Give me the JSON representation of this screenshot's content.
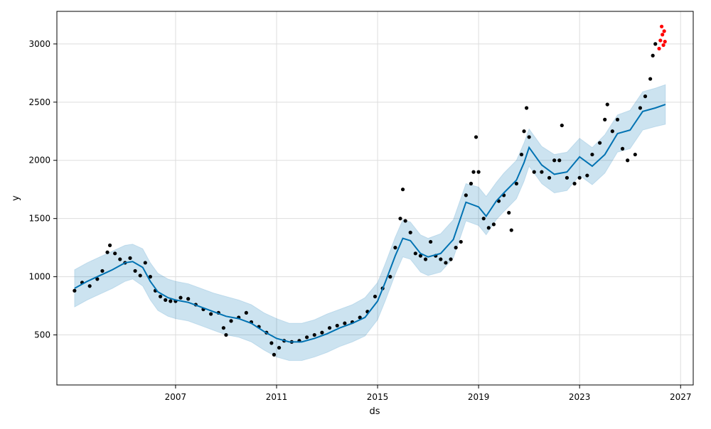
{
  "chart_data": {
    "type": "line",
    "title": "",
    "xlabel": "ds",
    "ylabel": "y",
    "grid": true,
    "xlim": [
      2002.3,
      2027.5
    ],
    "ylim": [
      70,
      3280
    ],
    "x_ticks": [
      2007,
      2011,
      2015,
      2019,
      2023,
      2027
    ],
    "x_tick_labels": [
      "2007",
      "2011",
      "2015",
      "2019",
      "2023",
      "2027"
    ],
    "y_ticks": [
      500,
      1000,
      1500,
      2000,
      2500,
      3000
    ],
    "y_tick_labels": [
      "500",
      "1000",
      "1500",
      "2000",
      "2500",
      "3000"
    ],
    "colors": {
      "forecast_line": "#0072B2",
      "uncertainty_band": "#0072B2",
      "observed_points": "#000000",
      "recent_points": "#ff0000",
      "grid": "#dddddd"
    },
    "series": [
      {
        "role": "forecast",
        "x": [
          2003.0,
          2003.5,
          2004.0,
          2004.5,
          2005.0,
          2005.3,
          2005.7,
          2006.0,
          2006.3,
          2006.7,
          2007.0,
          2007.5,
          2008.0,
          2008.5,
          2009.0,
          2009.5,
          2010.0,
          2010.5,
          2011.0,
          2011.5,
          2012.0,
          2012.5,
          2013.0,
          2013.5,
          2014.0,
          2014.5,
          2015.0,
          2015.3,
          2015.7,
          2016.0,
          2016.3,
          2016.7,
          2017.0,
          2017.5,
          2018.0,
          2018.5,
          2019.0,
          2019.3,
          2019.7,
          2020.0,
          2020.5,
          2020.8,
          2021.0,
          2021.5,
          2022.0,
          2022.5,
          2023.0,
          2023.5,
          2024.0,
          2024.5,
          2025.0,
          2025.5,
          2026.0,
          2026.4
        ],
        "y": [
          900,
          960,
          1010,
          1060,
          1120,
          1130,
          1080,
          960,
          870,
          820,
          800,
          780,
          740,
          700,
          660,
          640,
          600,
          530,
          470,
          440,
          440,
          470,
          510,
          560,
          600,
          650,
          790,
          950,
          1180,
          1330,
          1310,
          1200,
          1170,
          1200,
          1320,
          1640,
          1600,
          1520,
          1650,
          1720,
          1830,
          1980,
          2110,
          1960,
          1880,
          1900,
          2030,
          1950,
          2050,
          2230,
          2260,
          2420,
          2450,
          2480
        ],
        "band_upper": [
          1060,
          1120,
          1170,
          1220,
          1270,
          1280,
          1240,
          1120,
          1030,
          980,
          960,
          940,
          900,
          860,
          830,
          800,
          760,
          690,
          640,
          600,
          600,
          630,
          680,
          720,
          760,
          820,
          950,
          1110,
          1340,
          1490,
          1470,
          1360,
          1330,
          1370,
          1490,
          1800,
          1770,
          1690,
          1810,
          1890,
          2000,
          2150,
          2270,
          2120,
          2050,
          2070,
          2190,
          2110,
          2220,
          2390,
          2430,
          2590,
          2620,
          2650
        ],
        "band_lower": [
          740,
          800,
          850,
          900,
          960,
          980,
          920,
          800,
          710,
          660,
          640,
          620,
          580,
          540,
          500,
          480,
          440,
          370,
          310,
          280,
          280,
          310,
          350,
          400,
          440,
          490,
          630,
          790,
          1020,
          1170,
          1150,
          1040,
          1010,
          1040,
          1160,
          1480,
          1440,
          1360,
          1490,
          1560,
          1670,
          1820,
          1950,
          1800,
          1720,
          1740,
          1870,
          1790,
          1890,
          2070,
          2100,
          2260,
          2290,
          2310
        ]
      },
      {
        "role": "observed",
        "points": [
          [
            2003.0,
            880
          ],
          [
            2003.3,
            950
          ],
          [
            2003.6,
            920
          ],
          [
            2003.9,
            980
          ],
          [
            2004.1,
            1050
          ],
          [
            2004.3,
            1210
          ],
          [
            2004.4,
            1270
          ],
          [
            2004.6,
            1200
          ],
          [
            2004.8,
            1150
          ],
          [
            2005.0,
            1120
          ],
          [
            2005.2,
            1160
          ],
          [
            2005.4,
            1050
          ],
          [
            2005.6,
            1010
          ],
          [
            2005.8,
            1120
          ],
          [
            2006.0,
            1000
          ],
          [
            2006.2,
            880
          ],
          [
            2006.4,
            830
          ],
          [
            2006.6,
            800
          ],
          [
            2006.8,
            790
          ],
          [
            2007.0,
            790
          ],
          [
            2007.2,
            820
          ],
          [
            2007.5,
            810
          ],
          [
            2007.8,
            760
          ],
          [
            2008.1,
            720
          ],
          [
            2008.4,
            680
          ],
          [
            2008.7,
            690
          ],
          [
            2008.9,
            560
          ],
          [
            2009.0,
            500
          ],
          [
            2009.2,
            620
          ],
          [
            2009.5,
            650
          ],
          [
            2009.8,
            690
          ],
          [
            2010.0,
            610
          ],
          [
            2010.3,
            570
          ],
          [
            2010.6,
            520
          ],
          [
            2010.8,
            430
          ],
          [
            2010.9,
            330
          ],
          [
            2011.1,
            390
          ],
          [
            2011.3,
            450
          ],
          [
            2011.6,
            440
          ],
          [
            2011.9,
            450
          ],
          [
            2012.2,
            480
          ],
          [
            2012.5,
            500
          ],
          [
            2012.8,
            520
          ],
          [
            2013.1,
            560
          ],
          [
            2013.4,
            580
          ],
          [
            2013.7,
            600
          ],
          [
            2014.0,
            610
          ],
          [
            2014.3,
            650
          ],
          [
            2014.6,
            700
          ],
          [
            2014.9,
            830
          ],
          [
            2015.2,
            900
          ],
          [
            2015.5,
            1000
          ],
          [
            2015.7,
            1250
          ],
          [
            2015.9,
            1500
          ],
          [
            2016.0,
            1750
          ],
          [
            2016.1,
            1480
          ],
          [
            2016.3,
            1380
          ],
          [
            2016.5,
            1200
          ],
          [
            2016.7,
            1180
          ],
          [
            2016.9,
            1150
          ],
          [
            2017.1,
            1300
          ],
          [
            2017.3,
            1180
          ],
          [
            2017.5,
            1150
          ],
          [
            2017.7,
            1120
          ],
          [
            2017.9,
            1150
          ],
          [
            2018.1,
            1250
          ],
          [
            2018.3,
            1300
          ],
          [
            2018.5,
            1700
          ],
          [
            2018.7,
            1800
          ],
          [
            2018.8,
            1900
          ],
          [
            2018.9,
            2200
          ],
          [
            2019.0,
            1900
          ],
          [
            2019.2,
            1500
          ],
          [
            2019.4,
            1420
          ],
          [
            2019.6,
            1450
          ],
          [
            2019.8,
            1650
          ],
          [
            2020.0,
            1700
          ],
          [
            2020.2,
            1550
          ],
          [
            2020.3,
            1400
          ],
          [
            2020.5,
            1800
          ],
          [
            2020.7,
            2050
          ],
          [
            2020.8,
            2250
          ],
          [
            2020.9,
            2450
          ],
          [
            2021.0,
            2200
          ],
          [
            2021.2,
            1900
          ],
          [
            2021.5,
            1900
          ],
          [
            2021.8,
            1850
          ],
          [
            2022.0,
            2000
          ],
          [
            2022.2,
            2000
          ],
          [
            2022.3,
            2300
          ],
          [
            2022.5,
            1850
          ],
          [
            2022.8,
            1800
          ],
          [
            2023.0,
            1850
          ],
          [
            2023.3,
            1870
          ],
          [
            2023.5,
            2050
          ],
          [
            2023.8,
            2150
          ],
          [
            2024.0,
            2350
          ],
          [
            2024.1,
            2480
          ],
          [
            2024.3,
            2250
          ],
          [
            2024.5,
            2350
          ],
          [
            2024.7,
            2100
          ],
          [
            2024.9,
            2000
          ],
          [
            2025.2,
            2050
          ],
          [
            2025.4,
            2450
          ],
          [
            2025.6,
            2550
          ],
          [
            2025.8,
            2700
          ],
          [
            2025.9,
            2900
          ],
          [
            2026.0,
            3000
          ]
        ]
      },
      {
        "role": "recent",
        "points": [
          [
            2026.15,
            2960
          ],
          [
            2026.2,
            3030
          ],
          [
            2026.25,
            3150
          ],
          [
            2026.28,
            3080
          ],
          [
            2026.32,
            2990
          ],
          [
            2026.35,
            3110
          ],
          [
            2026.38,
            3020
          ]
        ]
      }
    ]
  }
}
